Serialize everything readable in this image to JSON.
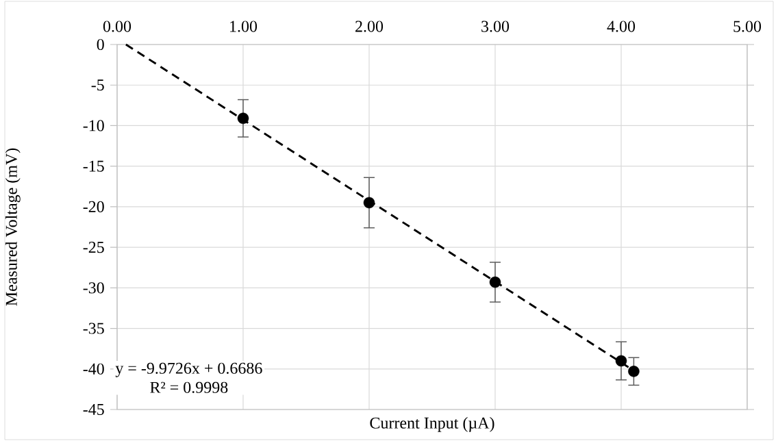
{
  "chart_data": {
    "type": "scatter",
    "xlabel": "Current Input (µA)",
    "ylabel": "Measured Voltage (mV)",
    "annotations": [
      "y = -9.9726x + 0.6686",
      "R² = 0.9998"
    ],
    "xlim": [
      0,
      5
    ],
    "xticks": [
      {
        "value": 0,
        "label": "0.00"
      },
      {
        "value": 1,
        "label": "1.00"
      },
      {
        "value": 2,
        "label": "2.00"
      },
      {
        "value": 3,
        "label": "3.00"
      },
      {
        "value": 4,
        "label": "4.00"
      },
      {
        "value": 5,
        "label": "5.00"
      }
    ],
    "ylim": [
      -45,
      0
    ],
    "yticks": [
      0,
      -5,
      -10,
      -15,
      -20,
      -25,
      -30,
      -35,
      -40,
      -45
    ],
    "grid": true,
    "series": [
      {
        "color": "#000000",
        "marker": "circle",
        "x": [
          1,
          2,
          3,
          4,
          4.1
        ],
        "values": [
          -9.1,
          -19.5,
          -29.3,
          -39.0,
          -40.3
        ],
        "errors": [
          2.3,
          3.1,
          2.45,
          2.35,
          1.7
        ]
      },
      {
        "type": "line",
        "color": "#000000",
        "marker": "none",
        "line_style": "dashed",
        "x": [
          0.07,
          4.1
        ],
        "values": [
          0,
          -40.2
        ]
      }
    ]
  }
}
